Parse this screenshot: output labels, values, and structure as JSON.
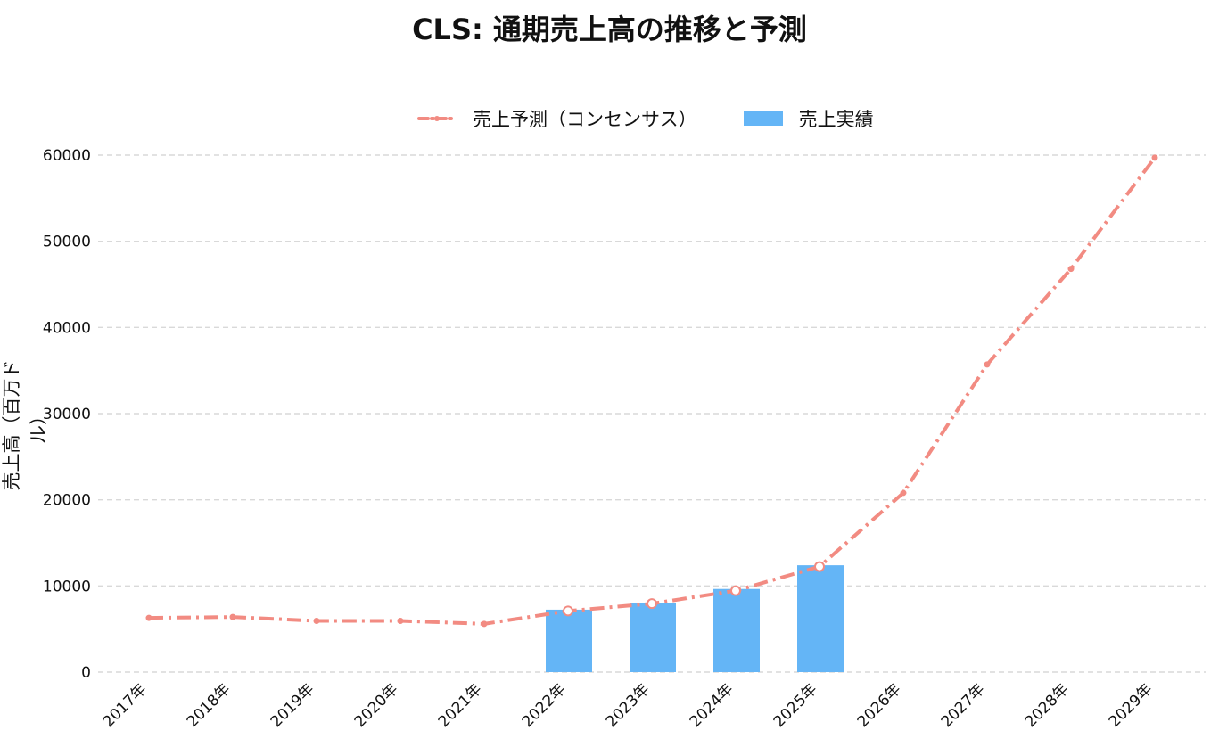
{
  "chart_data": {
    "type": "bar",
    "title": "CLS: 通期売上高の推移と予測",
    "ylabel": "売上高（百万ドル）",
    "xlabel": "",
    "ylim": [
      0,
      62000
    ],
    "yticks": [
      "0",
      "10000",
      "20000",
      "30000",
      "40000",
      "50000",
      "60000"
    ],
    "categories": [
      "2017年",
      "2018年",
      "2019年",
      "2020年",
      "2021年",
      "2022年",
      "2023年",
      "2024年",
      "2025年",
      "2026年",
      "2027年",
      "2028年",
      "2029年"
    ],
    "grid": true,
    "legend_position": "top-center",
    "series": [
      {
        "name": "売上予測（コンセンサス）",
        "kind": "line",
        "style": "dash-dot",
        "color": "#f28b82",
        "values": [
          6300,
          6400,
          5950,
          5950,
          5600,
          7100,
          7950,
          9450,
          12250,
          20800,
          35700,
          46800,
          59700
        ]
      },
      {
        "name": "売上実績",
        "kind": "bar",
        "color": "#64b5f6",
        "values": [
          null,
          null,
          null,
          null,
          null,
          7250,
          8000,
          9650,
          12400,
          null,
          null,
          null,
          null
        ]
      }
    ]
  }
}
